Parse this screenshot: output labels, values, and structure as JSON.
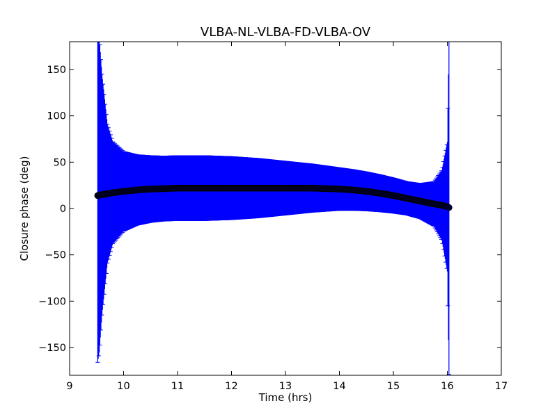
{
  "chart_data": {
    "type": "scatter",
    "title": "VLBA-NL-VLBA-FD-VLBA-OV",
    "xlabel": "Time (hrs)",
    "ylabel": "Closure phase (deg)",
    "xlim": [
      9,
      17
    ],
    "ylim": [
      -180,
      180
    ],
    "xticks": [
      9,
      10,
      11,
      12,
      13,
      14,
      15,
      16,
      17
    ],
    "yticks": [
      -150,
      -100,
      -50,
      0,
      50,
      100,
      150
    ],
    "grid": false,
    "legend": "none",
    "colors": {
      "points": "#000033",
      "errorbars": "#0000ff"
    },
    "series": [
      {
        "x": [
          9.52,
          9.55,
          9.6,
          9.7,
          9.8,
          10.0,
          10.25,
          10.5,
          10.75,
          11.0,
          11.5,
          12.0,
          12.5,
          13.0,
          13.5,
          14.0,
          14.25,
          14.5,
          14.75,
          15.0,
          15.25,
          15.5,
          15.75,
          15.9,
          16.0,
          16.03
        ],
        "y": [
          14,
          14.5,
          15,
          16,
          17,
          18.5,
          20,
          21,
          21.5,
          22,
          22,
          22,
          22,
          22,
          22,
          21,
          20,
          18.5,
          16.5,
          14,
          11,
          8,
          5,
          3.5,
          2,
          1
        ],
        "yerr": [
          180,
          170,
          130,
          75,
          55,
          43,
          38,
          36,
          35,
          35,
          35,
          34,
          32,
          29,
          26,
          23,
          22,
          21,
          20,
          19,
          18,
          19,
          24,
          38,
          70,
          180
        ]
      }
    ]
  }
}
